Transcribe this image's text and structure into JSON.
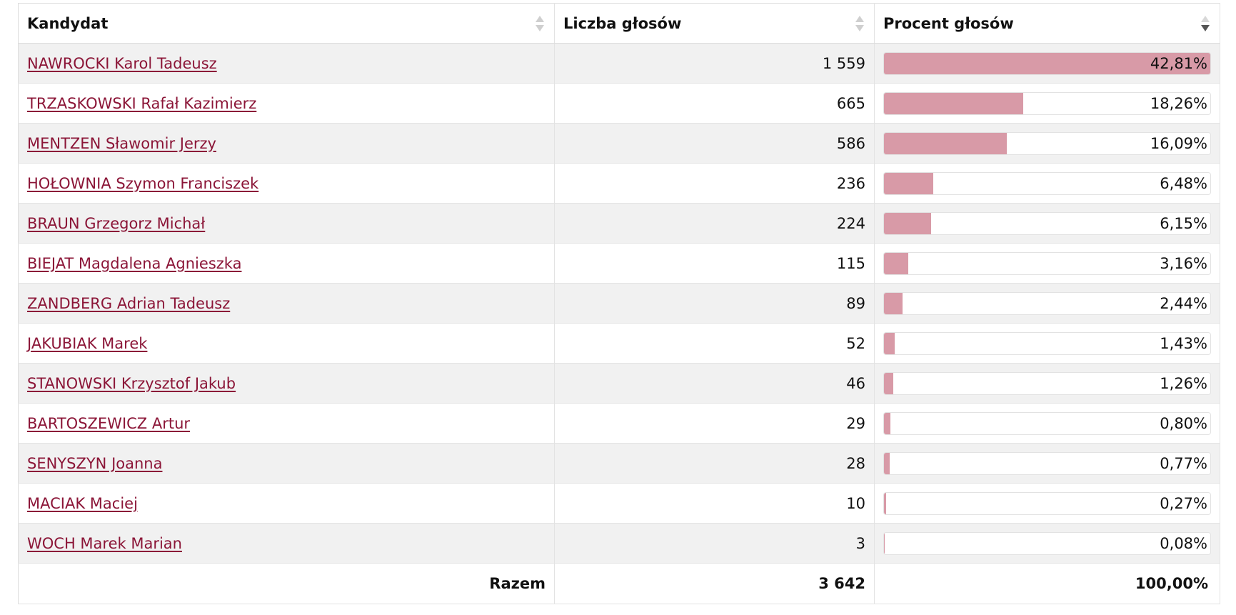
{
  "header": {
    "candidate": "Kandydat",
    "votes": "Liczba głosów",
    "percent": "Procent głosów"
  },
  "rows": [
    {
      "name": "NAWROCKI Karol Tadeusz",
      "votes": "1 559",
      "percent": "42,81%",
      "share": 0.4281
    },
    {
      "name": "TRZASKOWSKI Rafał Kazimierz",
      "votes": "665",
      "percent": "18,26%",
      "share": 0.1826
    },
    {
      "name": "MENTZEN Sławomir Jerzy",
      "votes": "586",
      "percent": "16,09%",
      "share": 0.1609
    },
    {
      "name": "HOŁOWNIA Szymon Franciszek",
      "votes": "236",
      "percent": "6,48%",
      "share": 0.0648
    },
    {
      "name": "BRAUN Grzegorz Michał",
      "votes": "224",
      "percent": "6,15%",
      "share": 0.0615
    },
    {
      "name": "BIEJAT Magdalena Agnieszka",
      "votes": "115",
      "percent": "3,16%",
      "share": 0.0316
    },
    {
      "name": "ZANDBERG Adrian Tadeusz",
      "votes": "89",
      "percent": "2,44%",
      "share": 0.0244
    },
    {
      "name": "JAKUBIAK Marek",
      "votes": "52",
      "percent": "1,43%",
      "share": 0.0143
    },
    {
      "name": "STANOWSKI Krzysztof Jakub",
      "votes": "46",
      "percent": "1,26%",
      "share": 0.0126
    },
    {
      "name": "BARTOSZEWICZ Artur",
      "votes": "29",
      "percent": "0,80%",
      "share": 0.008
    },
    {
      "name": "SENYSZYN Joanna",
      "votes": "28",
      "percent": "0,77%",
      "share": 0.0077
    },
    {
      "name": "MACIAK Maciej",
      "votes": "10",
      "percent": "0,27%",
      "share": 0.0027
    },
    {
      "name": "WOCH Marek Marian",
      "votes": "3",
      "percent": "0,08%",
      "share": 0.0008
    }
  ],
  "footer": {
    "label": "Razem",
    "votes": "3 642",
    "percent": "100,00%"
  },
  "colors": {
    "link": "#8b1537",
    "bar_fill": "#d89aa7",
    "row_stripe": "#f1f1f1"
  },
  "bar_max_share": 0.4281
}
